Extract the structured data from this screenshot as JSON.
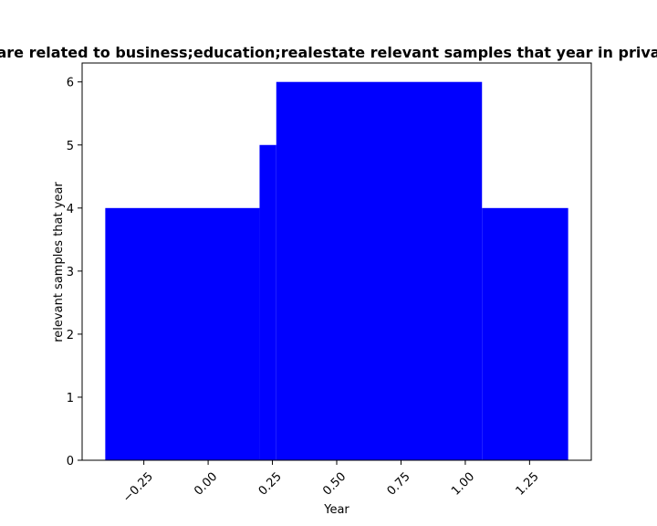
{
  "chart_data": {
    "type": "bar",
    "title": "are related to business;education;realestate relevant samples that year in priva",
    "xlabel": "Year",
    "ylabel": "relevant samples that year",
    "xlim": [
      -0.49,
      1.49
    ],
    "ylim": [
      0,
      6.3
    ],
    "color": "#0000ff",
    "grid": false,
    "bars": [
      {
        "x0": -0.4,
        "x1": 0.2,
        "value": 4
      },
      {
        "x0": 0.2,
        "x1": 0.265,
        "value": 5
      },
      {
        "x0": 0.265,
        "x1": 1.065,
        "value": 6
      },
      {
        "x0": 1.065,
        "x1": 1.4,
        "value": 4
      }
    ],
    "xticks": [
      {
        "value": -0.25,
        "label": "−0.25"
      },
      {
        "value": 0.0,
        "label": "0.00"
      },
      {
        "value": 0.25,
        "label": "0.25"
      },
      {
        "value": 0.5,
        "label": "0.50"
      },
      {
        "value": 0.75,
        "label": "0.75"
      },
      {
        "value": 1.0,
        "label": "1.00"
      },
      {
        "value": 1.25,
        "label": "1.25"
      }
    ],
    "yticks": [
      {
        "value": 0,
        "label": "0"
      },
      {
        "value": 1,
        "label": "1"
      },
      {
        "value": 2,
        "label": "2"
      },
      {
        "value": 3,
        "label": "3"
      },
      {
        "value": 4,
        "label": "4"
      },
      {
        "value": 5,
        "label": "5"
      },
      {
        "value": 6,
        "label": "6"
      }
    ]
  }
}
